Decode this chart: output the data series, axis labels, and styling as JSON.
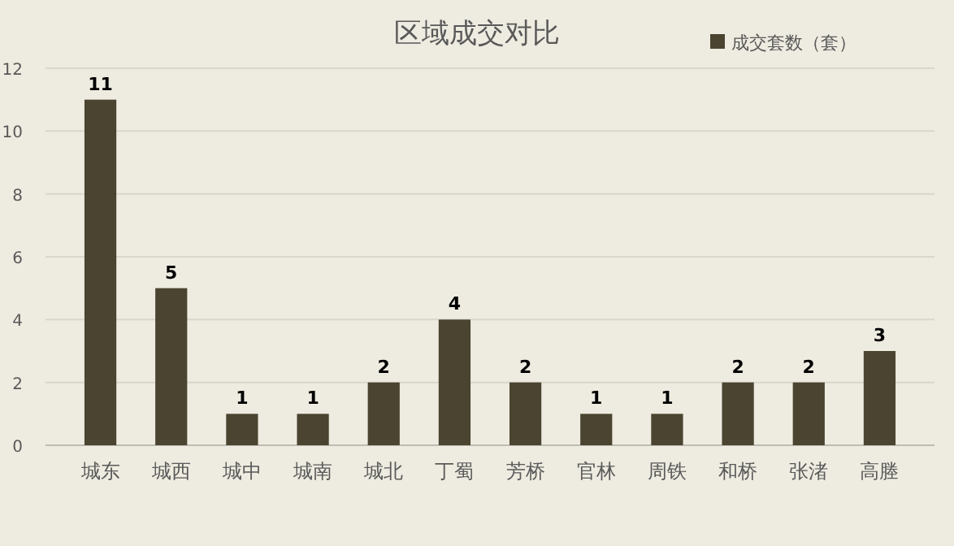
{
  "chart_data": {
    "type": "bar",
    "title": "区域成交对比",
    "categories": [
      "城东",
      "城西",
      "城中",
      "城南",
      "城北",
      "丁蜀",
      "芳桥",
      "官林",
      "周铁",
      "和桥",
      "张渚",
      "高塍"
    ],
    "series": [
      {
        "name": "成交套数（套）",
        "color": "#4a4430",
        "values": [
          11,
          5,
          1,
          1,
          2,
          4,
          2,
          1,
          1,
          2,
          2,
          3
        ]
      }
    ],
    "ylim": [
      0,
      12
    ],
    "yticks": [
      0,
      2,
      4,
      6,
      8,
      10,
      12
    ],
    "grid": "y",
    "legend": "top right",
    "data_labels": true
  }
}
